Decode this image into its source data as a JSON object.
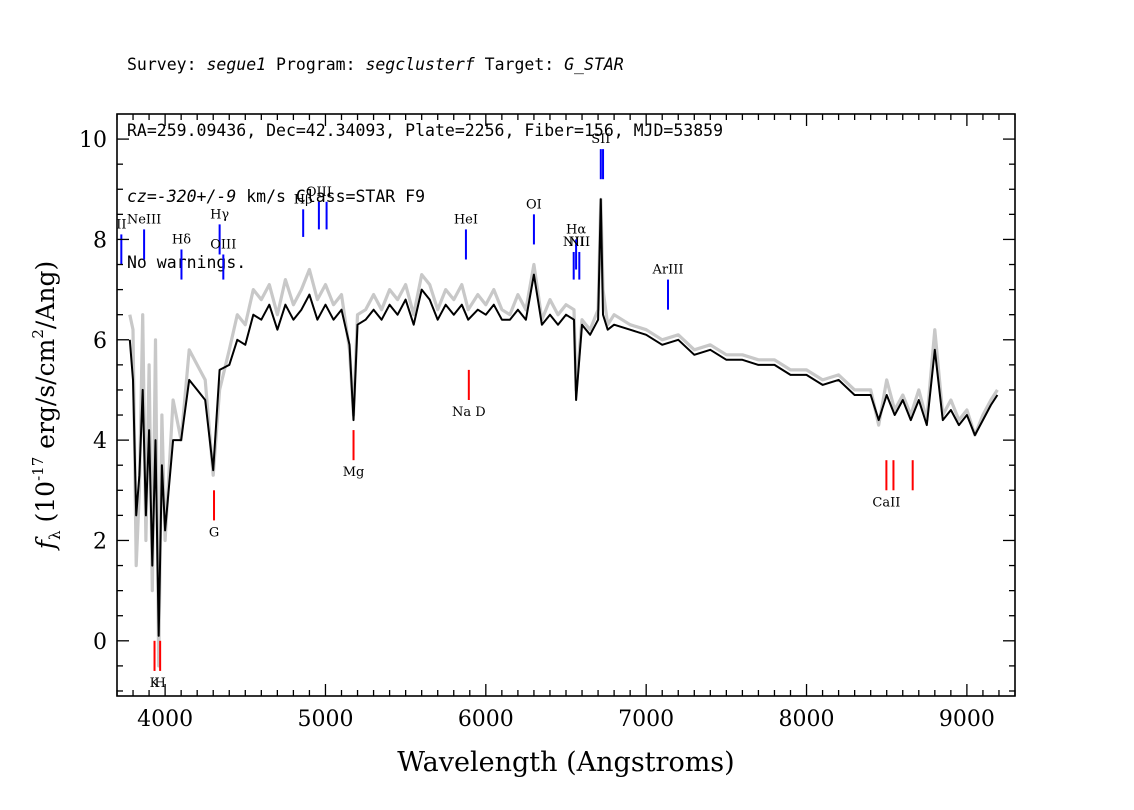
{
  "header": {
    "line1": {
      "survey_label": "Survey: ",
      "survey": "segue1",
      "program_label": " Program: ",
      "program": "segclusterf",
      "target_label": " Target: ",
      "target": "G_STAR"
    },
    "line2": "RA=259.09436, Dec=42.34093, Plate=2256, Fiber=156, MJD=53859",
    "line3": {
      "cz": "cz=-320+/-9",
      "rest": " km/s Class=STAR F9"
    },
    "line4": "No warnings."
  },
  "colors": {
    "raw_flux": "#c8c8c8",
    "smoothed_flux": "#000000",
    "emission_lines": "#0000ff",
    "absorption_lines": "#ff0000"
  },
  "chart_data": {
    "type": "line",
    "xlabel": "Wavelength (Angstroms)",
    "ylabel": "f_λ (10^-17 erg/s/cm^2/Ang)",
    "xlim": [
      3700,
      9300
    ],
    "ylim": [
      -1.1,
      10.5
    ],
    "x_ticks": [
      4000,
      5000,
      6000,
      7000,
      8000,
      9000
    ],
    "y_ticks": [
      0,
      2,
      4,
      6,
      8,
      10
    ],
    "grid": false,
    "series": [
      {
        "role": "raw",
        "x": [
          3780,
          3800,
          3820,
          3840,
          3860,
          3880,
          3900,
          3920,
          3940,
          3960,
          3980,
          4000,
          4050,
          4100,
          4150,
          4200,
          4250,
          4300,
          4340,
          4400,
          4450,
          4500,
          4550,
          4600,
          4650,
          4700,
          4750,
          4800,
          4850,
          4900,
          4950,
          5000,
          5050,
          5100,
          5150,
          5175,
          5200,
          5250,
          5300,
          5350,
          5400,
          5450,
          5500,
          5550,
          5600,
          5650,
          5700,
          5750,
          5800,
          5850,
          5890,
          5950,
          6000,
          6050,
          6100,
          6150,
          6200,
          6250,
          6300,
          6350,
          6400,
          6450,
          6500,
          6550,
          6563,
          6600,
          6650,
          6700,
          6717,
          6731,
          6760,
          6800,
          6900,
          7000,
          7100,
          7200,
          7300,
          7400,
          7500,
          7600,
          7700,
          7800,
          7900,
          8000,
          8100,
          8200,
          8300,
          8400,
          8450,
          8500,
          8550,
          8600,
          8650,
          8700,
          8750,
          8800,
          8850,
          8900,
          8950,
          9000,
          9050,
          9100,
          9150,
          9190
        ],
        "y": [
          6.5,
          6.2,
          1.5,
          3.0,
          6.5,
          2.0,
          5.5,
          1.0,
          6.0,
          -0.5,
          4.5,
          2.0,
          4.8,
          4.0,
          5.8,
          5.5,
          5.2,
          3.3,
          5.0,
          5.8,
          6.5,
          6.3,
          7.0,
          6.8,
          7.1,
          6.5,
          7.2,
          6.7,
          7.0,
          7.4,
          6.8,
          7.1,
          6.7,
          6.9,
          5.8,
          4.5,
          6.5,
          6.6,
          6.9,
          6.6,
          7.0,
          6.8,
          7.1,
          6.5,
          7.3,
          7.1,
          6.6,
          7.0,
          6.8,
          7.1,
          6.6,
          6.9,
          6.7,
          7.0,
          6.6,
          6.5,
          6.9,
          6.6,
          7.5,
          6.4,
          6.8,
          6.5,
          6.7,
          6.6,
          5.0,
          6.4,
          6.2,
          6.6,
          8.8,
          7.0,
          6.3,
          6.5,
          6.3,
          6.2,
          6.0,
          6.1,
          5.8,
          5.9,
          5.7,
          5.7,
          5.6,
          5.6,
          5.4,
          5.4,
          5.2,
          5.3,
          5.0,
          5.0,
          4.3,
          5.2,
          4.6,
          4.9,
          4.5,
          5.0,
          4.4,
          6.2,
          4.5,
          4.8,
          4.4,
          4.6,
          4.1,
          4.5,
          4.8,
          5.0
        ]
      },
      {
        "role": "smoothed",
        "x": [
          3780,
          3800,
          3820,
          3840,
          3860,
          3880,
          3900,
          3920,
          3940,
          3960,
          3980,
          4000,
          4050,
          4100,
          4150,
          4200,
          4250,
          4300,
          4340,
          4400,
          4450,
          4500,
          4550,
          4600,
          4650,
          4700,
          4750,
          4800,
          4850,
          4900,
          4950,
          5000,
          5050,
          5100,
          5150,
          5175,
          5200,
          5250,
          5300,
          5350,
          5400,
          5450,
          5500,
          5550,
          5600,
          5650,
          5700,
          5750,
          5800,
          5850,
          5890,
          5950,
          6000,
          6050,
          6100,
          6150,
          6200,
          6250,
          6300,
          6350,
          6400,
          6450,
          6500,
          6550,
          6563,
          6600,
          6650,
          6700,
          6717,
          6731,
          6760,
          6800,
          6900,
          7000,
          7100,
          7200,
          7300,
          7400,
          7500,
          7600,
          7700,
          7800,
          7900,
          8000,
          8100,
          8200,
          8300,
          8400,
          8450,
          8500,
          8550,
          8600,
          8650,
          8700,
          8750,
          8800,
          8850,
          8900,
          8950,
          9000,
          9050,
          9100,
          9150,
          9190
        ],
        "y": [
          6.0,
          5.2,
          2.5,
          3.3,
          5.0,
          2.5,
          4.2,
          1.5,
          4.0,
          0.1,
          3.5,
          2.2,
          4.0,
          4.0,
          5.2,
          5.0,
          4.8,
          3.4,
          5.4,
          5.5,
          6.0,
          5.9,
          6.5,
          6.4,
          6.7,
          6.2,
          6.7,
          6.4,
          6.6,
          6.9,
          6.4,
          6.7,
          6.4,
          6.6,
          5.9,
          4.4,
          6.3,
          6.4,
          6.6,
          6.4,
          6.7,
          6.5,
          6.8,
          6.3,
          7.0,
          6.8,
          6.4,
          6.7,
          6.5,
          6.7,
          6.4,
          6.6,
          6.5,
          6.7,
          6.4,
          6.4,
          6.6,
          6.4,
          7.3,
          6.3,
          6.5,
          6.3,
          6.5,
          6.4,
          4.8,
          6.3,
          6.1,
          6.4,
          8.8,
          6.5,
          6.2,
          6.3,
          6.2,
          6.1,
          5.9,
          6.0,
          5.7,
          5.8,
          5.6,
          5.6,
          5.5,
          5.5,
          5.3,
          5.3,
          5.1,
          5.2,
          4.9,
          4.9,
          4.4,
          4.9,
          4.5,
          4.8,
          4.4,
          4.8,
          4.3,
          5.8,
          4.4,
          4.6,
          4.3,
          4.5,
          4.1,
          4.4,
          4.7,
          4.9
        ]
      }
    ],
    "emission_lines": [
      {
        "label": "II",
        "x": 3727,
        "y0": 7.5,
        "y1": 8.1
      },
      {
        "label": "NeIII",
        "x": 3869,
        "y0": 7.6,
        "y1": 8.2
      },
      {
        "label": "Hδ",
        "x": 4102,
        "y0": 7.2,
        "y1": 7.8
      },
      {
        "label": "Hγ",
        "x": 4340,
        "y0": 7.7,
        "y1": 8.3
      },
      {
        "label": "OIII",
        "x": 4363,
        "y0": 7.2,
        "y1": 7.7
      },
      {
        "label": "Hβ",
        "x": 4861,
        "y0": 8.05,
        "y1": 8.6
      },
      {
        "label": "OIII",
        "x": 4959,
        "y0": 8.2,
        "y1": 8.75
      },
      {
        "label": "",
        "x": 5007,
        "y0": 8.2,
        "y1": 8.75
      },
      {
        "label": "HeI",
        "x": 5876,
        "y0": 7.6,
        "y1": 8.2
      },
      {
        "label": "OI",
        "x": 6300,
        "y0": 7.9,
        "y1": 8.5
      },
      {
        "label": "NII",
        "x": 6548,
        "y0": 7.2,
        "y1": 7.75
      },
      {
        "label": "Hα",
        "x": 6563,
        "y0": 7.4,
        "y1": 8.0
      },
      {
        "label": "NII",
        "x": 6583,
        "y0": 7.2,
        "y1": 7.75
      },
      {
        "label": "SII",
        "x": 6717,
        "y0": 9.2,
        "y1": 9.8
      },
      {
        "label": "",
        "x": 6731,
        "y0": 9.2,
        "y1": 9.8
      },
      {
        "label": "ArIII",
        "x": 7136,
        "y0": 6.6,
        "y1": 7.2
      }
    ],
    "absorption_lines": [
      {
        "label": "K",
        "x": 3934,
        "y0": -0.6,
        "y1": 0.0
      },
      {
        "label": "H",
        "x": 3969,
        "y0": -0.6,
        "y1": 0.0
      },
      {
        "label": "G",
        "x": 4305,
        "y0": 2.4,
        "y1": 3.0
      },
      {
        "label": "Mg",
        "x": 5175,
        "y0": 3.6,
        "y1": 4.2
      },
      {
        "label": "Na D",
        "x": 5894,
        "y0": 4.8,
        "y1": 5.4
      },
      {
        "label": "CaII",
        "x": 8498,
        "y0": 3.0,
        "y1": 3.6
      },
      {
        "label": "",
        "x": 8542,
        "y0": 3.0,
        "y1": 3.6
      },
      {
        "label": "",
        "x": 8662,
        "y0": 3.0,
        "y1": 3.6
      }
    ]
  }
}
